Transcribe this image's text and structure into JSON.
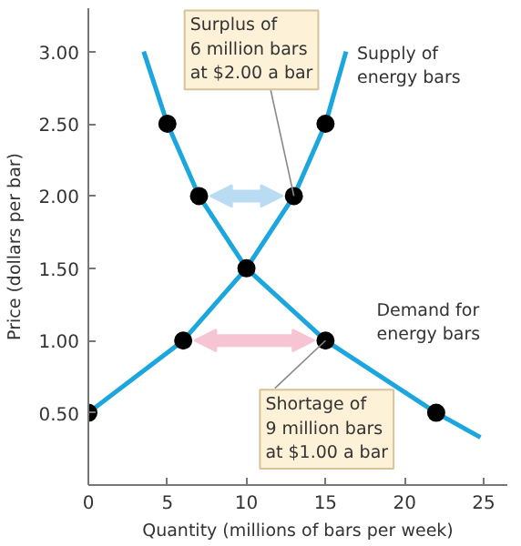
{
  "chart_data": {
    "type": "line",
    "xlabel": "Quantity (millions of bars per week)",
    "ylabel": "Price (dollars per bar)",
    "xlim": [
      0,
      26.5
    ],
    "ylim": [
      0,
      3.3
    ],
    "xticks": [
      0,
      5,
      10,
      15,
      20,
      25
    ],
    "yticks": [
      {
        "value": 0.5,
        "label": "0.50"
      },
      {
        "value": 1.0,
        "label": "1.00"
      },
      {
        "value": 1.5,
        "label": "1.50"
      },
      {
        "value": 2.0,
        "label": "2.00"
      },
      {
        "value": 2.5,
        "label": "2.50"
      },
      {
        "value": 3.0,
        "label": "3.00"
      }
    ],
    "grid": false,
    "legend": false,
    "series": [
      {
        "name": "Supply of\nenergy bars",
        "marker": "none",
        "color": "#1ba6dd",
        "x": [
          0,
          6,
          10,
          13,
          15,
          16.3
        ],
        "values": [
          0.5,
          1.0,
          1.5,
          2.0,
          2.5,
          3.0
        ]
      },
      {
        "name": "Demand for\nenergy bars",
        "marker": "none",
        "color": "#1ba6dd",
        "x": [
          3.5,
          5,
          7,
          10,
          15,
          22,
          24.8
        ],
        "values": [
          3.0,
          2.5,
          2.0,
          1.5,
          1.0,
          0.5,
          0.33
        ]
      },
      {
        "type": "scatter",
        "marker": "circle",
        "color": "#000000",
        "x": [
          0,
          6,
          10,
          13,
          15,
          5,
          7,
          15,
          22
        ],
        "values": [
          0.5,
          1.0,
          1.5,
          2.0,
          2.5,
          2.5,
          2.0,
          1.0,
          0.5
        ]
      }
    ],
    "annotations": [
      {
        "text": "Surplus of\n6 million bars\nat $2.00 a bar",
        "x": 13,
        "y": 2.0
      },
      {
        "text": "Shortage of\n9 million bars\nat $1.00 a bar",
        "x": 15,
        "y": 1.0
      }
    ]
  }
}
